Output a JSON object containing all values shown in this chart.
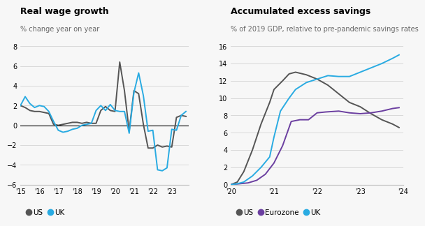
{
  "left_title": "Real wage growth",
  "left_subtitle": "% change year on year",
  "right_title": "Accumulated excess savings",
  "right_subtitle": "% of 2019 GDP, relative to pre-pandemic savings rates",
  "us_rwg_x": [
    2015.0,
    2015.25,
    2015.5,
    2015.75,
    2016.0,
    2016.25,
    2016.5,
    2016.75,
    2017.0,
    2017.25,
    2017.5,
    2017.75,
    2018.0,
    2018.25,
    2018.5,
    2018.75,
    2019.0,
    2019.25,
    2019.5,
    2019.75,
    2020.0,
    2020.25,
    2020.5,
    2020.75,
    2021.0,
    2021.25,
    2021.5,
    2021.75,
    2022.0,
    2022.25,
    2022.5,
    2022.75,
    2023.0,
    2023.25,
    2023.5,
    2023.75
  ],
  "us_rwg_y": [
    2.0,
    1.8,
    1.5,
    1.4,
    1.4,
    1.3,
    1.2,
    0.1,
    0.0,
    0.1,
    0.2,
    0.3,
    0.3,
    0.2,
    0.3,
    0.2,
    0.2,
    1.5,
    1.9,
    1.5,
    1.4,
    6.4,
    3.5,
    -0.6,
    3.5,
    3.2,
    0.1,
    -2.3,
    -2.3,
    -2.0,
    -2.2,
    -2.1,
    -2.2,
    0.8,
    1.0,
    0.9
  ],
  "uk_rwg_x": [
    2015.0,
    2015.25,
    2015.5,
    2015.75,
    2016.0,
    2016.25,
    2016.5,
    2016.75,
    2017.0,
    2017.25,
    2017.5,
    2017.75,
    2018.0,
    2018.25,
    2018.5,
    2018.75,
    2019.0,
    2019.25,
    2019.5,
    2019.75,
    2020.0,
    2020.25,
    2020.5,
    2020.75,
    2021.0,
    2021.25,
    2021.5,
    2021.75,
    2022.0,
    2022.25,
    2022.5,
    2022.75,
    2023.0,
    2023.25,
    2023.5,
    2023.75
  ],
  "uk_rwg_y": [
    2.0,
    2.9,
    2.2,
    1.8,
    2.0,
    1.9,
    1.4,
    0.4,
    -0.5,
    -0.7,
    -0.6,
    -0.4,
    -0.3,
    0.0,
    0.1,
    0.2,
    1.5,
    2.0,
    1.5,
    2.1,
    1.5,
    1.4,
    1.4,
    -0.8,
    3.3,
    5.3,
    3.0,
    -0.6,
    -0.5,
    -4.5,
    -4.6,
    -4.3,
    -0.4,
    -0.5,
    1.0,
    1.4
  ],
  "us_es_x": [
    2020.0,
    2020.15,
    2020.3,
    2020.5,
    2020.7,
    2020.9,
    2021.0,
    2021.2,
    2021.35,
    2021.5,
    2021.75,
    2022.0,
    2022.25,
    2022.5,
    2022.75,
    2023.0,
    2023.25,
    2023.5,
    2023.75,
    2023.9
  ],
  "us_es_y": [
    0.0,
    0.3,
    1.5,
    4.0,
    7.0,
    9.5,
    11.0,
    12.0,
    12.8,
    13.0,
    12.7,
    12.2,
    11.5,
    10.5,
    9.5,
    9.0,
    8.2,
    7.5,
    7.0,
    6.6
  ],
  "eu_es_x": [
    2020.0,
    2020.2,
    2020.4,
    2020.6,
    2020.8,
    2021.0,
    2021.2,
    2021.4,
    2021.6,
    2021.8,
    2022.0,
    2022.2,
    2022.5,
    2022.75,
    2023.0,
    2023.25,
    2023.5,
    2023.75,
    2023.9
  ],
  "eu_es_y": [
    0.0,
    0.1,
    0.2,
    0.5,
    1.2,
    2.5,
    4.5,
    7.3,
    7.5,
    7.5,
    8.3,
    8.4,
    8.5,
    8.3,
    8.2,
    8.3,
    8.5,
    8.8,
    8.9
  ],
  "uk_es_x": [
    2020.0,
    2020.15,
    2020.3,
    2020.5,
    2020.7,
    2020.9,
    2021.0,
    2021.15,
    2021.35,
    2021.5,
    2021.75,
    2022.0,
    2022.25,
    2022.5,
    2022.75,
    2023.0,
    2023.25,
    2023.5,
    2023.75,
    2023.9
  ],
  "uk_es_y": [
    0.0,
    0.1,
    0.3,
    1.0,
    2.0,
    3.2,
    5.5,
    8.5,
    10.0,
    11.0,
    11.8,
    12.2,
    12.6,
    12.5,
    12.5,
    13.0,
    13.5,
    14.0,
    14.6,
    15.0
  ],
  "us_color": "#555555",
  "uk_color": "#29ABE2",
  "eu_color": "#6B3FA0",
  "left_ylim": [
    -6,
    8
  ],
  "left_yticks": [
    -6,
    -4,
    -2,
    0,
    2,
    4,
    6,
    8
  ],
  "left_xticks": [
    2015,
    2016,
    2017,
    2018,
    2019,
    2020,
    2021,
    2022,
    2023
  ],
  "left_xticklabels": [
    "'15",
    "'16",
    "'17",
    "'18",
    "'19",
    "'20",
    "'21",
    "'22",
    "'23"
  ],
  "right_ylim": [
    0,
    16
  ],
  "right_yticks": [
    0,
    2,
    4,
    6,
    8,
    10,
    12,
    14,
    16
  ],
  "right_xticks": [
    2020,
    2021,
    2022,
    2023,
    2024
  ],
  "right_xticklabels": [
    "'20",
    "'21",
    "'22",
    "'23",
    "'24"
  ],
  "bg_color": "#f7f7f7",
  "line_width": 1.4
}
